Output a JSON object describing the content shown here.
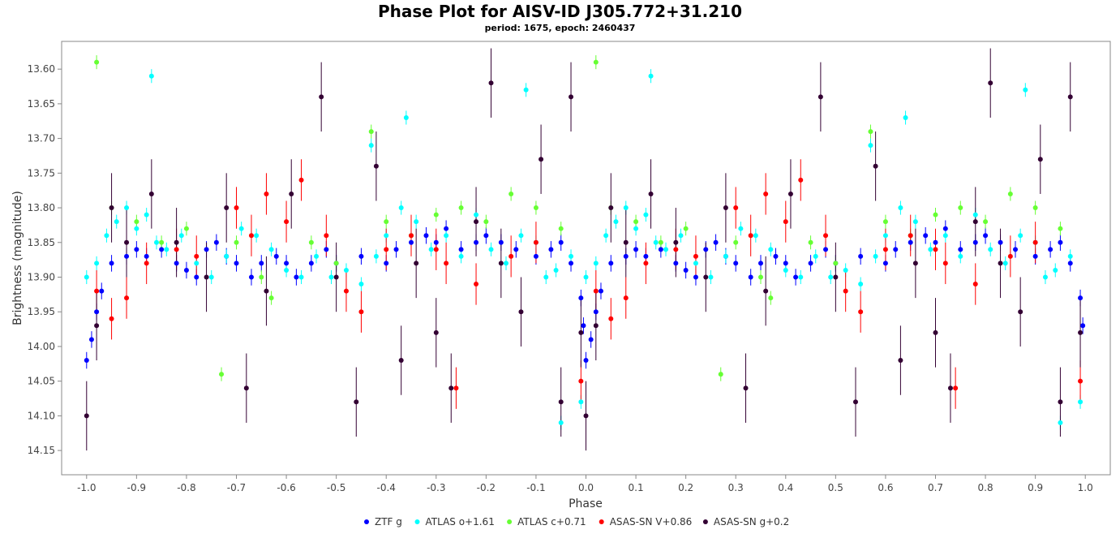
{
  "title": "Phase Plot for AISV-ID J305.772+31.210",
  "subtitle": "period: 1675, epoch: 2460437",
  "chart_data": {
    "type": "scatter",
    "xlabel": "Phase",
    "ylabel": "Brightness (magnitude)",
    "xlim": [
      -1.05,
      1.05
    ],
    "ylim": [
      14.185,
      13.56
    ],
    "y_axis_inverted": true,
    "grid": false,
    "legend_position": "bottom",
    "x_ticks": [
      -1.0,
      -0.9,
      -0.8,
      -0.7,
      -0.6,
      -0.5,
      -0.4,
      -0.3,
      -0.2,
      -0.1,
      0.0,
      0.1,
      0.2,
      0.3,
      0.4,
      0.5,
      0.6,
      0.7,
      0.8,
      0.9,
      1.0
    ],
    "x_tick_labels": [
      "-1.0",
      "-0.9",
      "-0.8",
      "-0.7",
      "-0.6",
      "-0.5",
      "-0.4",
      "-0.3",
      "-0.2",
      "-0.1",
      "0.0",
      "0.1",
      "0.2",
      "0.3",
      "0.4",
      "0.5",
      "0.6",
      "0.7",
      "0.8",
      "0.9",
      "1.0"
    ],
    "y_ticks": [
      13.6,
      13.65,
      13.7,
      13.75,
      13.8,
      13.85,
      13.9,
      13.95,
      14.0,
      14.05,
      14.1,
      14.15
    ],
    "y_tick_labels": [
      "13.60",
      "13.65",
      "13.70",
      "13.75",
      "13.80",
      "13.85",
      "13.90",
      "13.95",
      "14.00",
      "14.05",
      "14.10",
      "14.15"
    ],
    "series": [
      {
        "name": "ZTF g",
        "color": "#0000ff",
        "points": [
          [
            0.0,
            14.02
          ],
          [
            0.01,
            13.99
          ],
          [
            0.02,
            13.95
          ],
          [
            0.03,
            13.92
          ],
          [
            0.05,
            13.88
          ],
          [
            0.08,
            13.87
          ],
          [
            0.1,
            13.86
          ],
          [
            0.12,
            13.87
          ],
          [
            0.15,
            13.86
          ],
          [
            0.18,
            13.88
          ],
          [
            0.2,
            13.89
          ],
          [
            0.22,
            13.9
          ],
          [
            0.24,
            13.86
          ],
          [
            0.26,
            13.85
          ],
          [
            0.28,
            13.87
          ],
          [
            0.3,
            13.88
          ],
          [
            0.33,
            13.9
          ],
          [
            0.35,
            13.88
          ],
          [
            0.38,
            13.87
          ],
          [
            0.4,
            13.88
          ],
          [
            0.42,
            13.9
          ],
          [
            0.45,
            13.88
          ],
          [
            0.48,
            13.86
          ],
          [
            0.5,
            13.88
          ],
          [
            0.55,
            13.87
          ],
          [
            0.6,
            13.88
          ],
          [
            0.62,
            13.86
          ],
          [
            0.65,
            13.85
          ],
          [
            0.68,
            13.84
          ],
          [
            0.7,
            13.85
          ],
          [
            0.72,
            13.83
          ],
          [
            0.75,
            13.86
          ],
          [
            0.78,
            13.85
          ],
          [
            0.8,
            13.84
          ],
          [
            0.83,
            13.85
          ],
          [
            0.86,
            13.86
          ],
          [
            0.9,
            13.87
          ],
          [
            0.93,
            13.86
          ],
          [
            0.95,
            13.85
          ],
          [
            0.97,
            13.88
          ],
          [
            0.99,
            13.93
          ],
          [
            0.995,
            13.97
          ]
        ],
        "err": 0.012
      },
      {
        "name": "ATLAS o+1.61",
        "color": "#00ffff",
        "points": [
          [
            0.0,
            13.9
          ],
          [
            0.02,
            13.88
          ],
          [
            0.04,
            13.84
          ],
          [
            0.06,
            13.82
          ],
          [
            0.08,
            13.8
          ],
          [
            0.1,
            13.83
          ],
          [
            0.12,
            13.81
          ],
          [
            0.13,
            13.61
          ],
          [
            0.14,
            13.85
          ],
          [
            0.16,
            13.86
          ],
          [
            0.19,
            13.84
          ],
          [
            0.22,
            13.88
          ],
          [
            0.25,
            13.9
          ],
          [
            0.28,
            13.87
          ],
          [
            0.31,
            13.83
          ],
          [
            0.34,
            13.84
          ],
          [
            0.37,
            13.86
          ],
          [
            0.4,
            13.89
          ],
          [
            0.43,
            13.9
          ],
          [
            0.46,
            13.87
          ],
          [
            0.49,
            13.9
          ],
          [
            0.52,
            13.89
          ],
          [
            0.55,
            13.91
          ],
          [
            0.57,
            13.71
          ],
          [
            0.58,
            13.87
          ],
          [
            0.6,
            13.84
          ],
          [
            0.63,
            13.8
          ],
          [
            0.64,
            13.67
          ],
          [
            0.66,
            13.82
          ],
          [
            0.69,
            13.86
          ],
          [
            0.72,
            13.84
          ],
          [
            0.75,
            13.87
          ],
          [
            0.78,
            13.81
          ],
          [
            0.81,
            13.86
          ],
          [
            0.84,
            13.88
          ],
          [
            0.87,
            13.84
          ],
          [
            0.88,
            13.63
          ],
          [
            0.9,
            13.85
          ],
          [
            0.92,
            13.9
          ],
          [
            0.94,
            13.89
          ],
          [
            0.95,
            14.11
          ],
          [
            0.97,
            13.87
          ],
          [
            0.99,
            14.08
          ]
        ],
        "err": 0.01
      },
      {
        "name": "ATLAS c+0.71",
        "color": "#66ff33",
        "points": [
          [
            0.02,
            13.59
          ],
          [
            0.05,
            13.8
          ],
          [
            0.1,
            13.82
          ],
          [
            0.15,
            13.85
          ],
          [
            0.2,
            13.83
          ],
          [
            0.27,
            14.04
          ],
          [
            0.3,
            13.85
          ],
          [
            0.35,
            13.9
          ],
          [
            0.37,
            13.93
          ],
          [
            0.45,
            13.85
          ],
          [
            0.5,
            13.88
          ],
          [
            0.57,
            13.69
          ],
          [
            0.6,
            13.82
          ],
          [
            0.65,
            13.84
          ],
          [
            0.7,
            13.81
          ],
          [
            0.75,
            13.8
          ],
          [
            0.8,
            13.82
          ],
          [
            0.85,
            13.78
          ],
          [
            0.9,
            13.8
          ],
          [
            0.95,
            13.83
          ]
        ],
        "err": 0.01
      },
      {
        "name": "ASAS-SN V+0.86",
        "color": "#ff0000",
        "points": [
          [
            0.02,
            13.92
          ],
          [
            0.05,
            13.96
          ],
          [
            0.08,
            13.93
          ],
          [
            0.12,
            13.88
          ],
          [
            0.18,
            13.86
          ],
          [
            0.22,
            13.87
          ],
          [
            0.3,
            13.8
          ],
          [
            0.33,
            13.84
          ],
          [
            0.36,
            13.78
          ],
          [
            0.4,
            13.82
          ],
          [
            0.43,
            13.76
          ],
          [
            0.48,
            13.84
          ],
          [
            0.52,
            13.92
          ],
          [
            0.55,
            13.95
          ],
          [
            0.6,
            13.86
          ],
          [
            0.65,
            13.84
          ],
          [
            0.7,
            13.86
          ],
          [
            0.72,
            13.88
          ],
          [
            0.74,
            14.06
          ],
          [
            0.78,
            13.91
          ],
          [
            0.85,
            13.87
          ],
          [
            0.9,
            13.85
          ],
          [
            0.99,
            14.05
          ]
        ],
        "err": 0.03
      },
      {
        "name": "ASAS-SN g+0.2",
        "color": "#330033",
        "points": [
          [
            0.0,
            14.1
          ],
          [
            0.02,
            13.97
          ],
          [
            0.05,
            13.8
          ],
          [
            0.08,
            13.85
          ],
          [
            0.13,
            13.78
          ],
          [
            0.18,
            13.85
          ],
          [
            0.24,
            13.9
          ],
          [
            0.28,
            13.8
          ],
          [
            0.32,
            14.06
          ],
          [
            0.36,
            13.92
          ],
          [
            0.41,
            13.78
          ],
          [
            0.47,
            13.64
          ],
          [
            0.5,
            13.9
          ],
          [
            0.54,
            14.08
          ],
          [
            0.58,
            13.74
          ],
          [
            0.63,
            14.02
          ],
          [
            0.66,
            13.88
          ],
          [
            0.7,
            13.98
          ],
          [
            0.73,
            14.06
          ],
          [
            0.78,
            13.82
          ],
          [
            0.81,
            13.62
          ],
          [
            0.83,
            13.88
          ],
          [
            0.87,
            13.95
          ],
          [
            0.91,
            13.73
          ],
          [
            0.95,
            14.08
          ],
          [
            0.97,
            13.64
          ],
          [
            0.99,
            13.98
          ]
        ],
        "err": 0.05
      }
    ]
  },
  "legend": {
    "items": [
      {
        "label": "ZTF g",
        "color": "#0000ff"
      },
      {
        "label": "ATLAS o+1.61",
        "color": "#00ffff"
      },
      {
        "label": "ATLAS c+0.71",
        "color": "#66ff33"
      },
      {
        "label": "ASAS-SN V+0.86",
        "color": "#ff0000"
      },
      {
        "label": "ASAS-SN g+0.2",
        "color": "#330033"
      }
    ]
  }
}
